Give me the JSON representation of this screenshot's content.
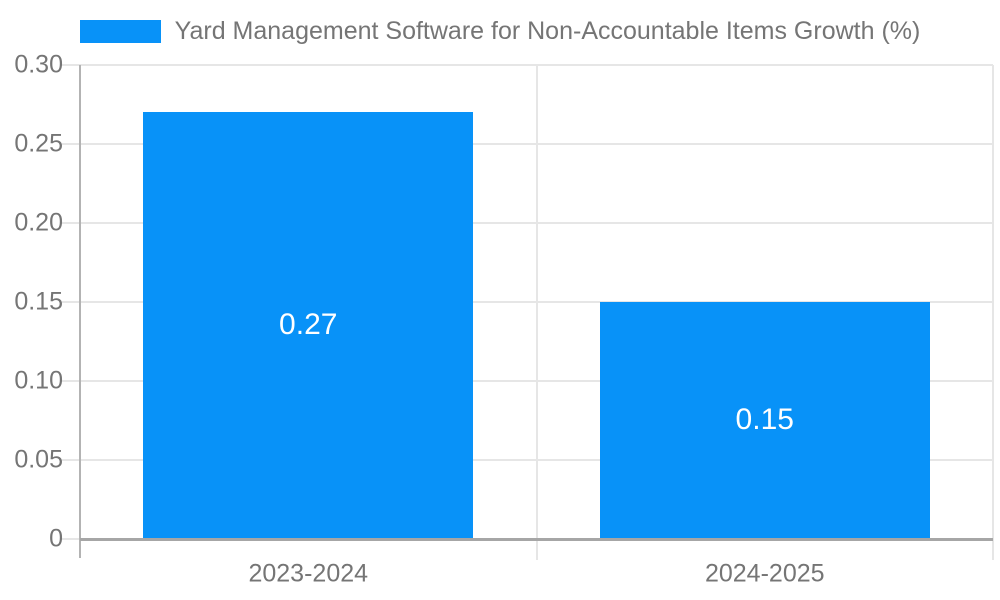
{
  "colors": {
    "bar": "#0892f8",
    "grid": "#e6e6e6",
    "axis": "#a6a6a6",
    "axis_vertical": "#b3b3b3",
    "text": "#757575",
    "value_label": "#ffffff",
    "background": "#ffffff"
  },
  "legend": {
    "label": "Yard Management Software for Non-Accountable Items Growth (%)"
  },
  "chart_data": {
    "type": "bar",
    "title": "Yard Management Software for Non-Accountable Items Growth (%)",
    "categories": [
      "2023-2024",
      "2024-2025"
    ],
    "values": [
      0.27,
      0.15
    ],
    "value_labels": [
      "0.27",
      "0.15"
    ],
    "xlabel": "",
    "ylabel": "",
    "ylim": [
      0,
      0.3
    ],
    "yticks": [
      {
        "value": 0,
        "label": "0"
      },
      {
        "value": 0.05,
        "label": "0.05"
      },
      {
        "value": 0.1,
        "label": "0.10"
      },
      {
        "value": 0.15,
        "label": "0.15"
      },
      {
        "value": 0.2,
        "label": "0.20"
      },
      {
        "value": 0.25,
        "label": "0.25"
      },
      {
        "value": 0.3,
        "label": "0.30"
      }
    ],
    "grid": true,
    "legend_position": "top-center",
    "bar_label_position": "center"
  }
}
